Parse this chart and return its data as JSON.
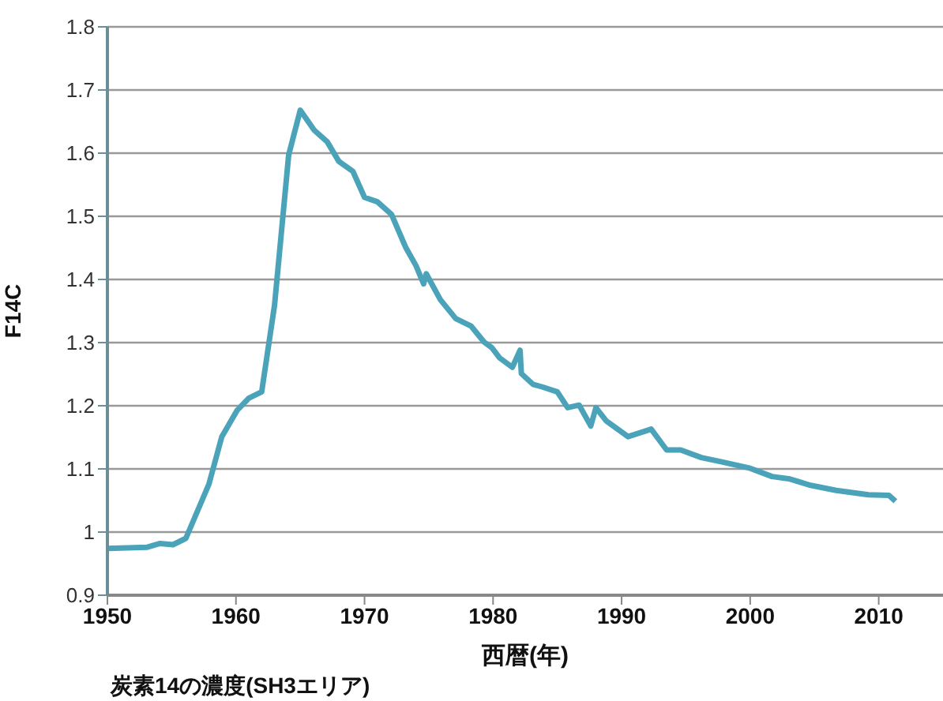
{
  "chart_data": {
    "type": "line",
    "xlabel": "西暦(年)",
    "ylabel": "F14C",
    "annotations": [
      "炭素14の濃度(SH3エリア)"
    ],
    "xlim": [
      1950,
      2015
    ],
    "xticks": [
      1950,
      1960,
      1970,
      1980,
      1990,
      2000,
      2010
    ],
    "ylim": [
      0.9,
      1.8
    ],
    "yticks": [
      0.9,
      1,
      1.1,
      1.2,
      1.3,
      1.4,
      1.5,
      1.6,
      1.7,
      1.8
    ],
    "grid": "y",
    "legend": false,
    "marker": "none",
    "line_style": "solid",
    "series": [
      {
        "color": "#4ba3b9",
        "x": [
          1950,
          1953.1,
          1954.1,
          1955.1,
          1956.1,
          1957.9,
          1958.9,
          1960.1,
          1961,
          1962,
          1963,
          1964.1,
          1965,
          1966.1,
          1967.1,
          1968,
          1969.1,
          1970,
          1971,
          1972.1,
          1973.2,
          1974,
          1974.6,
          1974.8,
          1975.9,
          1977.1,
          1978.3,
          1979.3,
          1979.9,
          1980.5,
          1981.5,
          1982.1,
          1982.2,
          1983.1,
          1983.8,
          1985,
          1985.8,
          1986.7,
          1987.6,
          1988,
          1988.8,
          1990.5,
          1992.3,
          1993.5,
          1994.6,
          1996.2,
          1997.8,
          2000,
          2001.7,
          2003.1,
          2004.7,
          2006.7,
          2009.2,
          2010.8,
          2011.3
        ],
        "values": [
          0.974,
          0.976,
          0.982,
          0.98,
          0.99,
          1.076,
          1.151,
          1.193,
          1.212,
          1.222,
          1.359,
          1.597,
          1.668,
          1.636,
          1.618,
          1.587,
          1.571,
          1.53,
          1.523,
          1.503,
          1.451,
          1.422,
          1.393,
          1.409,
          1.368,
          1.338,
          1.326,
          1.301,
          1.292,
          1.276,
          1.261,
          1.288,
          1.251,
          1.234,
          1.23,
          1.222,
          1.197,
          1.201,
          1.168,
          1.197,
          1.176,
          1.151,
          1.163,
          1.13,
          1.13,
          1.118,
          1.111,
          1.101,
          1.088,
          1.084,
          1.074,
          1.066,
          1.059,
          1.058,
          1.049
        ]
      }
    ]
  }
}
